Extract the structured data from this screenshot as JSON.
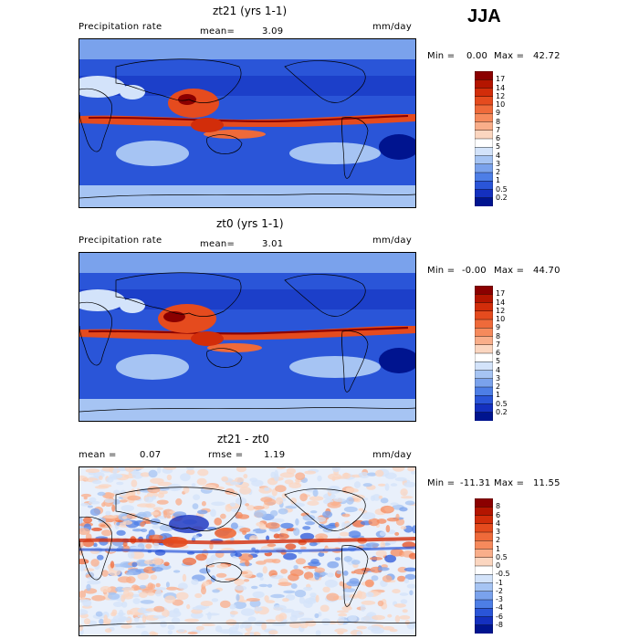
{
  "season": "JJA",
  "chart_data": [
    {
      "type": "heatmap",
      "title": "zt21 (yrs 1-1)",
      "variable": "Precipitation rate",
      "mean_label": "mean=",
      "mean_value": "3.09",
      "units": "mm/day",
      "min_label": "Min =",
      "min_value": "0.00",
      "max_label": "Max =",
      "max_value": "42.72",
      "colorbar_levels": [
        "17",
        "14",
        "12",
        "10",
        "9",
        "8",
        "7",
        "6",
        "5",
        "4",
        "3",
        "2",
        "1",
        "0.5",
        "0.2"
      ],
      "colorbar_colors": [
        "#8b0000",
        "#b41500",
        "#d22d0a",
        "#e54b1e",
        "#ef6a3a",
        "#f68a5c",
        "#f9ae8a",
        "#fbd6c0",
        "#ffffff",
        "#d3e3fa",
        "#a6c4f3",
        "#7aa2ec",
        "#4d7ee6",
        "#2a55d8",
        "#1430bf",
        "#00148f"
      ],
      "geo_extent": {
        "lon": [
          0,
          360
        ],
        "lat": [
          -90,
          90
        ]
      }
    },
    {
      "type": "heatmap",
      "title": "zt0 (yrs 1-1)",
      "variable": "Precipitation rate",
      "mean_label": "mean=",
      "mean_value": "3.01",
      "units": "mm/day",
      "min_label": "Min =",
      "min_value": "-0.00",
      "max_label": "Max =",
      "max_value": "44.70",
      "colorbar_levels": [
        "17",
        "14",
        "12",
        "10",
        "9",
        "8",
        "7",
        "6",
        "5",
        "4",
        "3",
        "2",
        "1",
        "0.5",
        "0.2"
      ],
      "colorbar_colors": [
        "#8b0000",
        "#b41500",
        "#d22d0a",
        "#e54b1e",
        "#ef6a3a",
        "#f68a5c",
        "#f9ae8a",
        "#fbd6c0",
        "#ffffff",
        "#d3e3fa",
        "#a6c4f3",
        "#7aa2ec",
        "#4d7ee6",
        "#2a55d8",
        "#1430bf",
        "#00148f"
      ],
      "geo_extent": {
        "lon": [
          0,
          360
        ],
        "lat": [
          -90,
          90
        ]
      }
    },
    {
      "type": "heatmap",
      "title": "zt21 - zt0",
      "mean_label": "mean =",
      "mean_value": "0.07",
      "rmse_label": "rmse =",
      "rmse_value": "1.19",
      "units": "mm/day",
      "min_label": "Min =",
      "min_value": "-11.31",
      "max_label": "Max =",
      "max_value": "11.55",
      "colorbar_levels": [
        "8",
        "6",
        "4",
        "3",
        "2",
        "1",
        "0.5",
        "0",
        "-0.5",
        "-1",
        "-2",
        "-3",
        "-4",
        "-6",
        "-8"
      ],
      "colorbar_colors": [
        "#8b0000",
        "#b41500",
        "#d22d0a",
        "#e54b1e",
        "#ef6a3a",
        "#f68a5c",
        "#f9ae8a",
        "#fbd6c0",
        "#ffffff",
        "#d3e3fa",
        "#a6c4f3",
        "#7aa2ec",
        "#4d7ee6",
        "#2a55d8",
        "#1430bf",
        "#00148f"
      ],
      "geo_extent": {
        "lon": [
          0,
          360
        ],
        "lat": [
          -90,
          90
        ]
      }
    }
  ]
}
